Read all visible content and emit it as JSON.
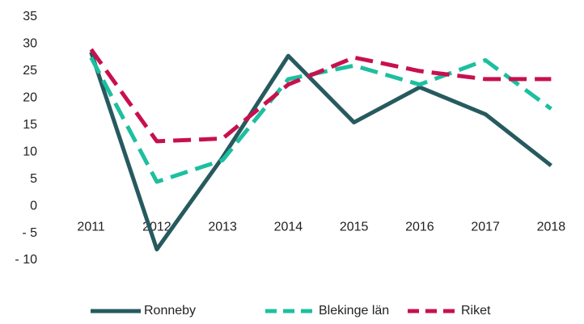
{
  "chart_data": {
    "type": "line",
    "categories": [
      "2011",
      "2012",
      "2013",
      "2014",
      "2015",
      "2016",
      "2017",
      "2018"
    ],
    "series": [
      {
        "name": "Ronneby",
        "color": "#265a5e",
        "dash": "solid",
        "values": [
          28.5,
          -8,
          9,
          27.8,
          15.5,
          22,
          17,
          7.5
        ]
      },
      {
        "name": "Blekinge län",
        "color": "#1dbf9f",
        "dash": "dashed",
        "values": [
          27.5,
          4.5,
          8.5,
          23.5,
          26,
          22.5,
          27,
          18
        ]
      },
      {
        "name": "Riket",
        "color": "#c8104e",
        "dash": "dashed",
        "values": [
          29,
          12,
          12.5,
          22.5,
          27.5,
          25,
          23.5,
          23.5
        ]
      }
    ],
    "ylim": [
      -10,
      35
    ],
    "yticks": [
      {
        "value": -10,
        "label": "- 10"
      },
      {
        "value": -5,
        "label": "- 5"
      },
      0,
      5,
      10,
      15,
      20,
      25,
      30,
      35
    ],
    "legend": "bottom"
  }
}
